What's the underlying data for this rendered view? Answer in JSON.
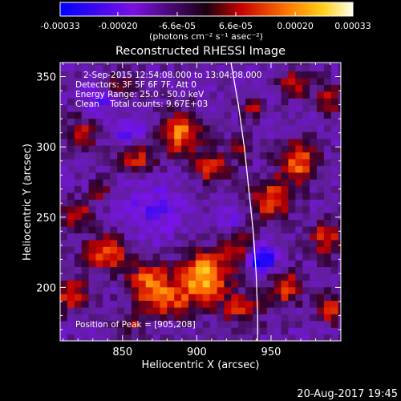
{
  "chart_data": {
    "type": "heatmap",
    "title": "Reconstructed RHESSI Image",
    "xlabel": "Heliocentric X (arcsec)",
    "ylabel": "Heliocentric Y (arcsec)",
    "xlim": [
      808,
      997
    ],
    "ylim": [
      162,
      360
    ],
    "xticks": [
      850,
      900,
      950
    ],
    "yticks": [
      200,
      250,
      300,
      350
    ],
    "grid": false,
    "colorbar": {
      "ticks": [
        "-0.00033",
        "-0.00020",
        "-6.6e-05",
        "6.6e-05",
        "0.00020",
        "0.00033"
      ],
      "tick_values": [
        -0.00033,
        -0.0002,
        -6.6e-05,
        6.6e-05,
        0.0002,
        0.00033
      ],
      "unit_label": "(photons cm⁻² s⁻¹ asec⁻²)",
      "range": [
        -0.00033,
        0.00033
      ]
    },
    "info_lines": [
      "2-Sep-2015 12:54:08.000 to 13:04:08.000",
      "Detectors: 3F 5F 6F 7F, Att 0",
      "Energy Range: 25.0 - 50.0 keV",
      "Clean    Total counts: 9.67E+03"
    ],
    "peak_text": "Position of Peak = [905,208]",
    "peak_position": [
      905,
      208
    ],
    "limb_curve": [
      [
        923,
        360
      ],
      [
        928,
        330
      ],
      [
        932,
        300
      ],
      [
        935,
        270
      ],
      [
        938,
        240
      ],
      [
        940,
        210
      ],
      [
        941,
        180
      ],
      [
        941,
        162
      ]
    ],
    "pixel_size_arcsec": 4.8,
    "sources": [
      {
        "x": 905,
        "y": 208,
        "sx": 12,
        "sy": 12,
        "amp": 1.0
      },
      {
        "x": 868,
        "y": 205,
        "sx": 10,
        "sy": 9,
        "amp": 0.7
      },
      {
        "x": 840,
        "y": 225,
        "sx": 10,
        "sy": 9,
        "amp": 0.7
      },
      {
        "x": 880,
        "y": 190,
        "sx": 12,
        "sy": 8,
        "amp": 0.6
      },
      {
        "x": 820,
        "y": 252,
        "sx": 7,
        "sy": 7,
        "amp": 0.6
      },
      {
        "x": 815,
        "y": 195,
        "sx": 9,
        "sy": 9,
        "amp": 0.55
      },
      {
        "x": 890,
        "y": 310,
        "sx": 10,
        "sy": 10,
        "amp": 0.8
      },
      {
        "x": 860,
        "y": 292,
        "sx": 9,
        "sy": 7,
        "amp": 0.55
      },
      {
        "x": 910,
        "y": 285,
        "sx": 8,
        "sy": 8,
        "amp": 0.6
      },
      {
        "x": 930,
        "y": 300,
        "sx": 5,
        "sy": 6,
        "amp": 0.5
      },
      {
        "x": 822,
        "y": 310,
        "sx": 8,
        "sy": 8,
        "amp": 0.5
      },
      {
        "x": 968,
        "y": 290,
        "sx": 9,
        "sy": 11,
        "amp": 0.75
      },
      {
        "x": 950,
        "y": 262,
        "sx": 10,
        "sy": 10,
        "amp": 0.7
      },
      {
        "x": 988,
        "y": 235,
        "sx": 8,
        "sy": 9,
        "amp": 0.6
      },
      {
        "x": 960,
        "y": 200,
        "sx": 8,
        "sy": 9,
        "amp": 0.6
      },
      {
        "x": 990,
        "y": 185,
        "sx": 6,
        "sy": 8,
        "amp": 0.55
      },
      {
        "x": 965,
        "y": 345,
        "sx": 8,
        "sy": 7,
        "amp": 0.5
      },
      {
        "x": 990,
        "y": 335,
        "sx": 6,
        "sy": 7,
        "amp": 0.55
      },
      {
        "x": 848,
        "y": 345,
        "sx": 7,
        "sy": 6,
        "amp": 0.4
      },
      {
        "x": 835,
        "y": 270,
        "sx": 5,
        "sy": 6,
        "amp": 0.4
      },
      {
        "x": 930,
        "y": 230,
        "sx": 8,
        "sy": 10,
        "amp": 0.45
      },
      {
        "x": 937,
        "y": 328,
        "sx": 5,
        "sy": 5,
        "amp": 0.45
      },
      {
        "x": 930,
        "y": 185,
        "sx": 10,
        "sy": 8,
        "amp": 0.5
      },
      {
        "x": 855,
        "y": 175,
        "sx": 6,
        "sy": 6,
        "amp": 0.4
      }
    ],
    "dips": [
      {
        "x": 943,
        "y": 220,
        "sx": 7,
        "sy": 7,
        "amp": -0.8
      },
      {
        "x": 870,
        "y": 255,
        "sx": 15,
        "sy": 14,
        "amp": -0.35
      },
      {
        "x": 835,
        "y": 335,
        "sx": 8,
        "sy": 8,
        "amp": -0.35
      },
      {
        "x": 855,
        "y": 310,
        "sx": 8,
        "sy": 6,
        "amp": -0.4
      },
      {
        "x": 925,
        "y": 250,
        "sx": 6,
        "sy": 8,
        "amp": -0.35
      }
    ]
  },
  "footer": {
    "timestamp": "20-Aug-2017 19:45"
  }
}
